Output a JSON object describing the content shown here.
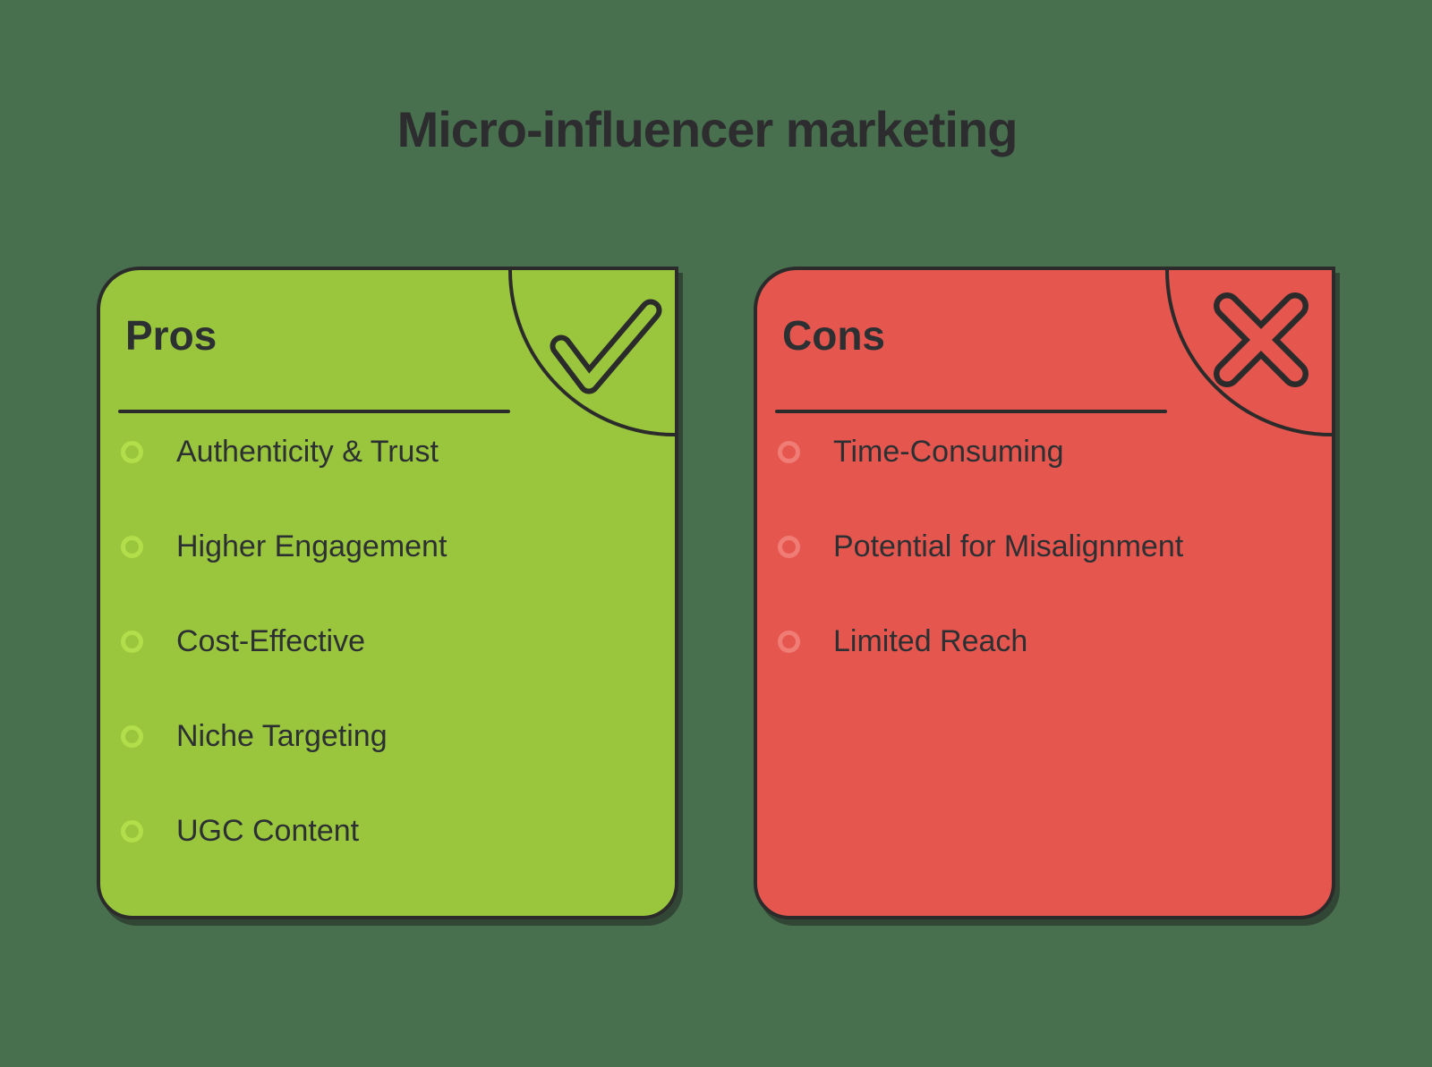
{
  "title": "Micro-influencer marketing",
  "colors": {
    "background": "#48704F",
    "ink": "#2B2B2B",
    "text": "#2D3032",
    "title": "#2D2D2F",
    "pros_fill": "#9AC63D",
    "pros_bullet": "#B1DE4A",
    "cons_fill": "#E5564F",
    "cons_bullet": "#F07D75"
  },
  "cards": [
    {
      "id": "pros",
      "label": "Pros",
      "icon": "check-icon",
      "items": [
        "Authenticity & Trust",
        "Higher Engagement",
        "Cost-Effective",
        "Niche Targeting",
        "UGC Content"
      ]
    },
    {
      "id": "cons",
      "label": "Cons",
      "icon": "x-icon",
      "items": [
        "Time-Consuming",
        "Potential for Misalignment",
        "Limited Reach"
      ]
    }
  ]
}
